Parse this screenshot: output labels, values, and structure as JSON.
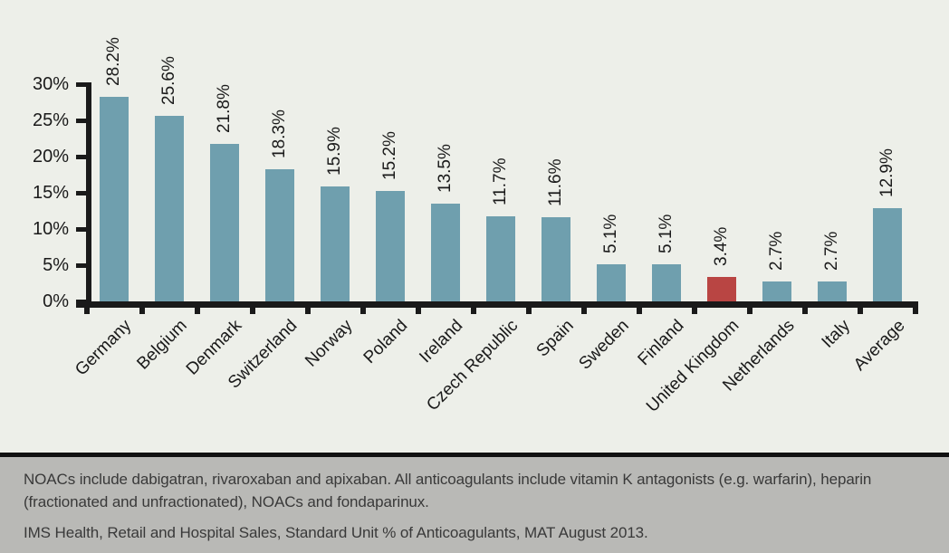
{
  "chart_data": {
    "type": "bar",
    "categories": [
      "Germany",
      "Belgium",
      "Denmark",
      "Switzerland",
      "Norway",
      "Poland",
      "Ireland",
      "Czech Republic",
      "Spain",
      "Sweden",
      "Finland",
      "United Kingdom",
      "Netherlands",
      "Italy",
      "Average"
    ],
    "values": [
      28.2,
      25.6,
      21.8,
      18.3,
      15.9,
      15.2,
      13.5,
      11.7,
      11.6,
      5.1,
      5.1,
      3.4,
      2.7,
      2.7,
      12.9
    ],
    "value_label_format": "percent-one-decimal",
    "title": "",
    "xlabel": "",
    "ylabel": "",
    "ylim": [
      0,
      30
    ],
    "yticks": [
      0,
      5,
      10,
      15,
      20,
      25,
      30
    ],
    "ytick_suffix": "%",
    "grid": false,
    "legend": "none",
    "highlight_category": "United Kingdom",
    "bar_color": "#6f9fae",
    "highlight_color": "#b94543",
    "axis_color": "#1a1a1a",
    "background_color": "#edefe9"
  },
  "footer": {
    "note": "NOACs include dabigatran, rivaroxaban and apixaban. All anticoagulants include vitamin K antagonists (e.g. warfarin), heparin (fractionated and unfractionated), NOACs and fondaparinux.",
    "source": "IMS Health, Retail and Hospital Sales, Standard Unit % of Anticoagulants, MAT August 2013."
  }
}
